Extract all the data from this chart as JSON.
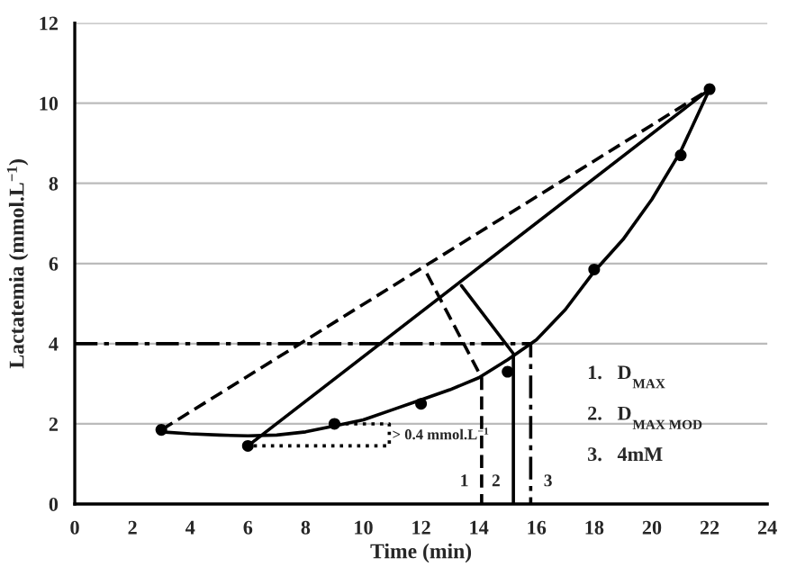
{
  "chart_data": {
    "type": "line",
    "xlabel": "Time (min)",
    "ylabel": "Lactatemia (mmol.L$^{−1}$)",
    "xlim": [
      0,
      24
    ],
    "ylim": [
      0,
      12
    ],
    "xticks": [
      0,
      2,
      4,
      6,
      8,
      10,
      12,
      14,
      16,
      18,
      20,
      22,
      24
    ],
    "yticks": [
      0,
      2,
      4,
      6,
      8,
      10,
      12
    ],
    "grid": "y",
    "series": [
      {
        "type": "scatter",
        "color": "#000000",
        "marker": "circle",
        "x": [
          3,
          6,
          9,
          12,
          15,
          18,
          21,
          22
        ],
        "values": [
          1.85,
          1.45,
          2.0,
          2.5,
          3.3,
          5.85,
          8.7,
          10.35
        ]
      },
      {
        "color": "#000000",
        "line_style": "solid",
        "x": [
          3,
          4,
          5,
          6,
          7,
          8,
          9,
          10,
          11,
          12,
          13,
          14,
          15,
          16,
          17,
          18,
          19,
          20,
          21,
          22
        ],
        "values": [
          1.8,
          1.75,
          1.72,
          1.7,
          1.72,
          1.8,
          1.95,
          2.1,
          2.35,
          2.6,
          2.85,
          3.15,
          3.6,
          4.1,
          4.85,
          5.8,
          6.6,
          7.6,
          8.8,
          10.35
        ]
      },
      {
        "color": "#000000",
        "line_style": "dashed",
        "x": [
          3,
          22
        ],
        "values": [
          1.85,
          10.35
        ]
      },
      {
        "color": "#000000",
        "line_style": "solid",
        "x": [
          6,
          22
        ],
        "values": [
          1.45,
          10.35
        ]
      },
      {
        "color": "#000000",
        "line_style": "dashed",
        "x": [
          12.2,
          14.1,
          14.1
        ],
        "values": [
          5.75,
          3.15,
          0
        ]
      },
      {
        "color": "#000000",
        "line_style": "solid",
        "x": [
          13.4,
          15.2,
          15.2
        ],
        "values": [
          5.45,
          3.75,
          0
        ]
      },
      {
        "color": "#000000",
        "line_style": "dashdot",
        "x": [
          0,
          15.8,
          15.8
        ],
        "values": [
          4,
          4,
          0
        ]
      },
      {
        "color": "#000000",
        "line_style": "dotted",
        "x": [
          6.2,
          10.9,
          10.9,
          9
        ],
        "values": [
          1.45,
          1.45,
          2.0,
          2.0
        ]
      }
    ],
    "annotations": [
      {
        "text": "> 0.4 mmol.L$^{−1}$",
        "x": 11,
        "y": 1.7
      },
      "1",
      "2",
      "3",
      "1.   D$_{MAX}$",
      "2.   D$_{MAX MOD}$",
      "3.   4mM"
    ]
  }
}
